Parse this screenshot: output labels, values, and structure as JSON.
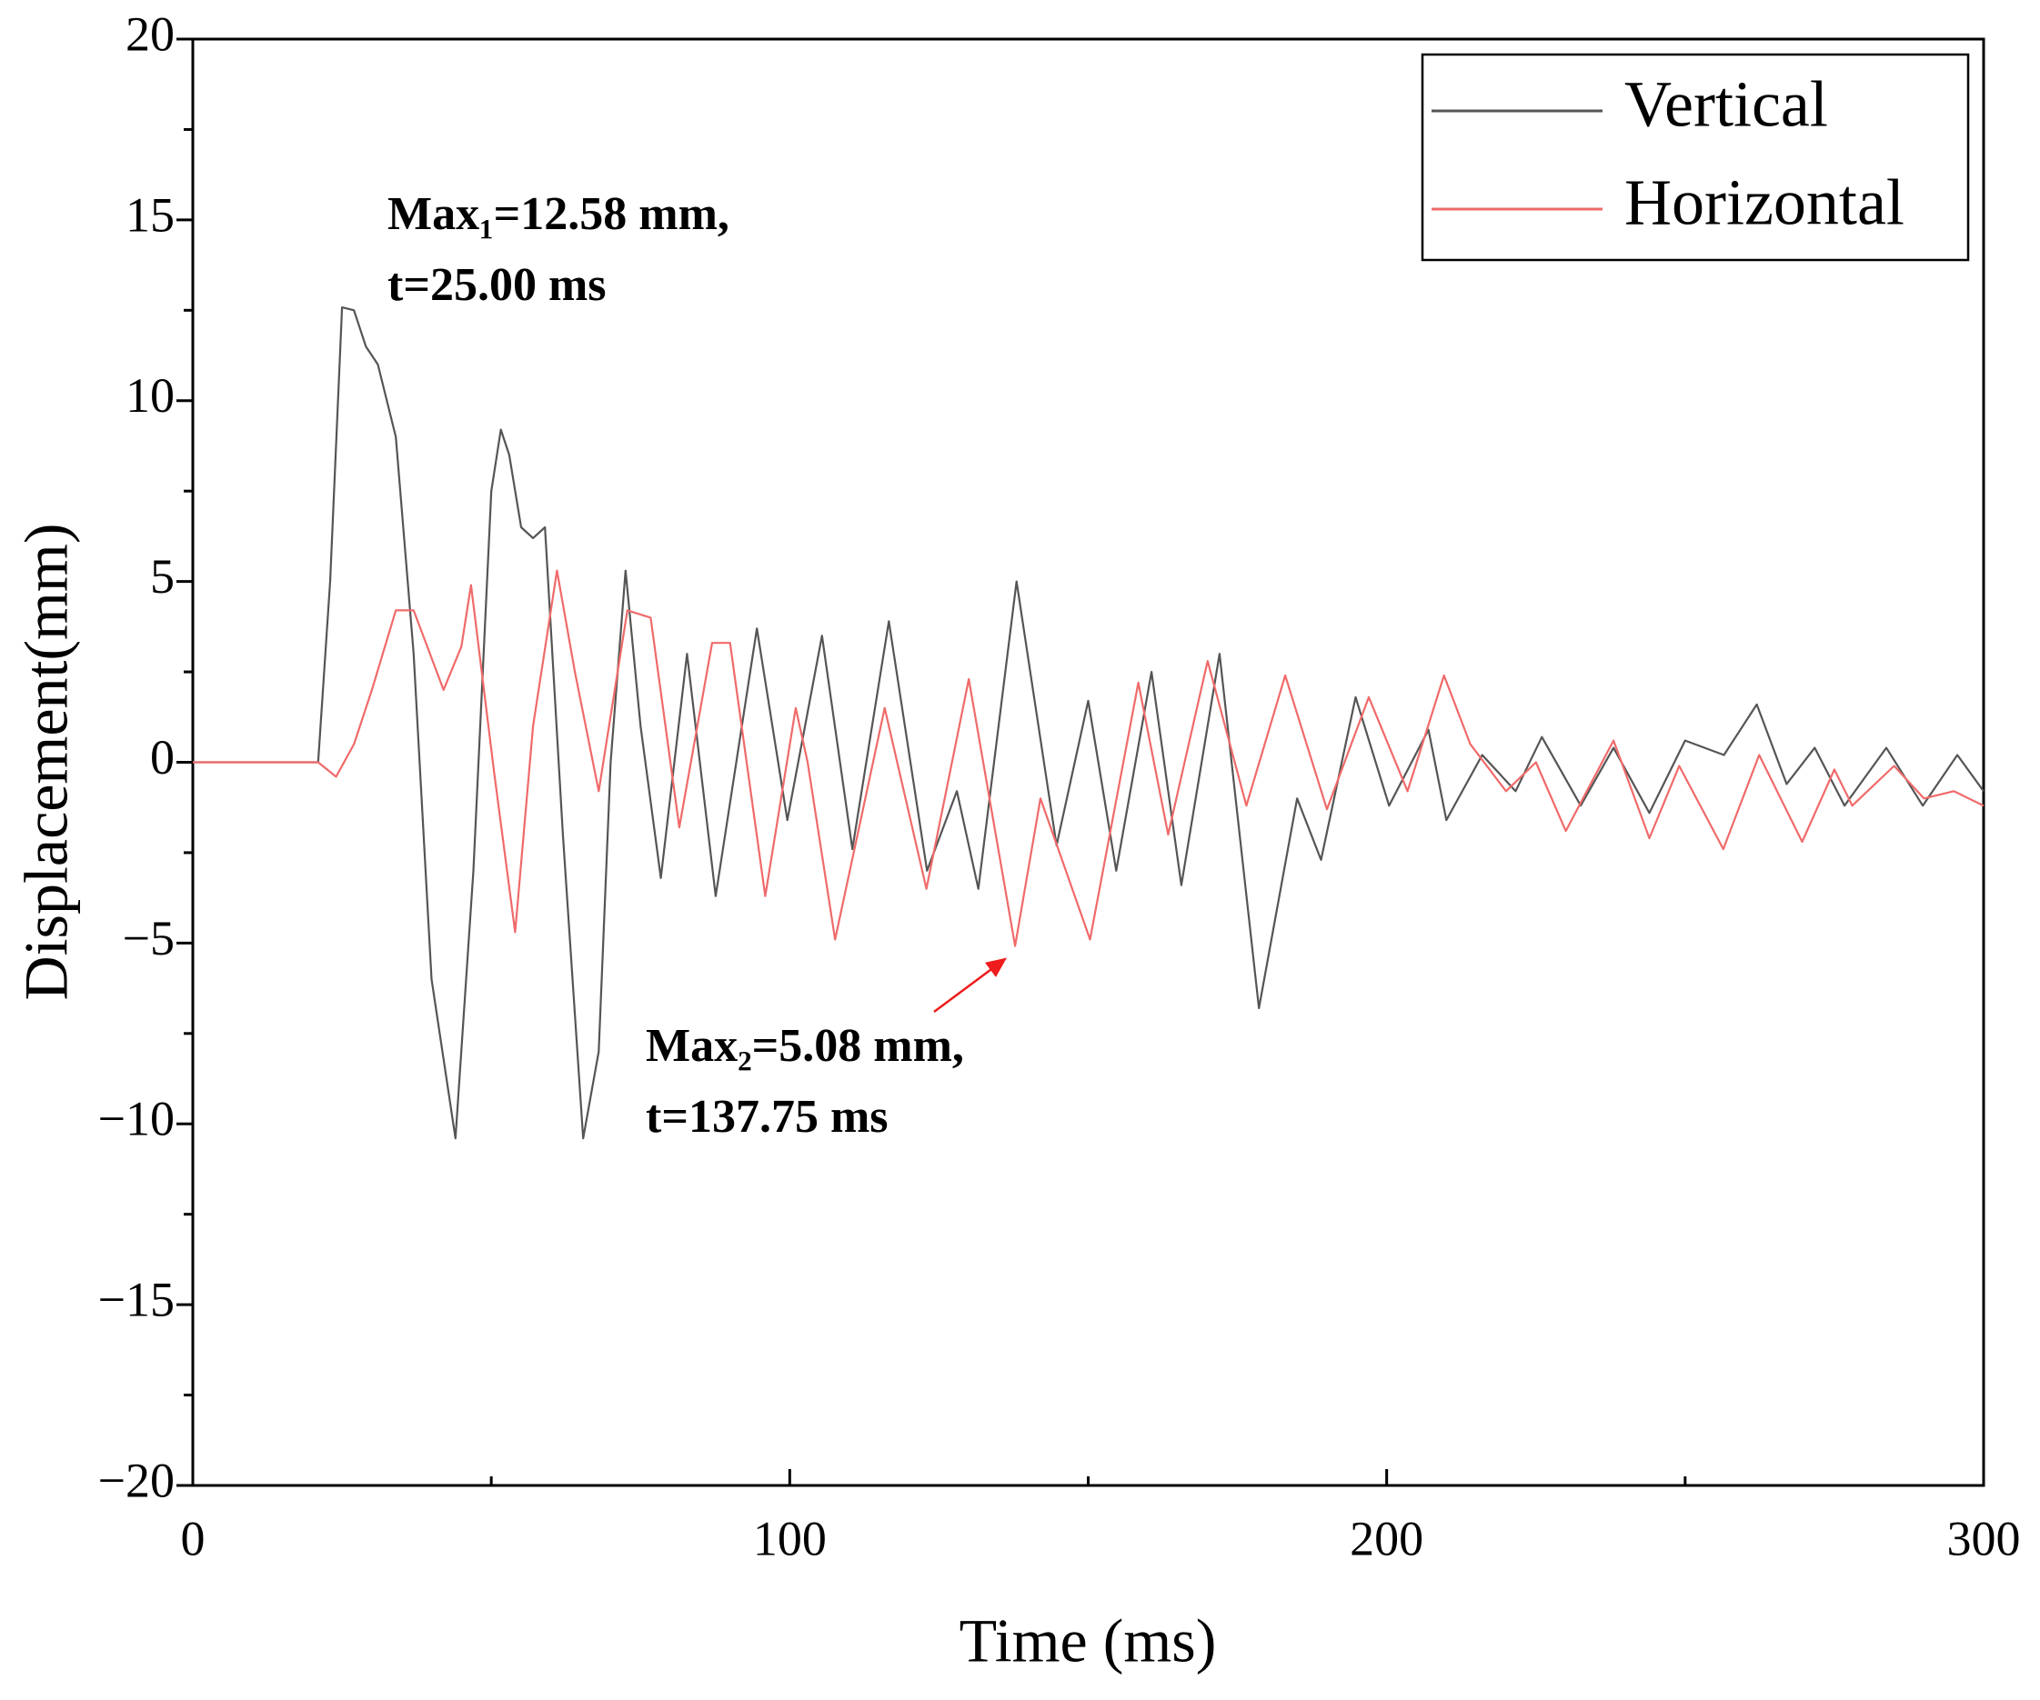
{
  "chart_data": {
    "type": "line",
    "x_label": "Time (ms)",
    "y_label": "Displacement(mm)",
    "xlim": [
      0,
      300
    ],
    "ylim": [
      -20,
      20
    ],
    "xticks": [
      0,
      100,
      200,
      300
    ],
    "yticks": [
      -20,
      -15,
      -10,
      -5,
      0,
      5,
      10,
      15,
      20
    ],
    "xminorticks": [
      50,
      150,
      250
    ],
    "yminorticks": [
      -17.5,
      -12.5,
      -7.5,
      -2.5,
      2.5,
      7.5,
      12.5,
      17.5
    ],
    "legend": "upper right",
    "series": [
      {
        "name": "Vertical",
        "color": "#555555",
        "x": [
          0,
          21,
          23,
          25,
          27,
          29,
          31,
          34,
          37,
          40,
          44,
          47,
          50,
          51.6,
          53,
          55,
          57,
          59,
          62,
          65.4,
          68,
          70,
          72.5,
          75,
          78.4,
          82.8,
          87.6,
          94.5,
          99.6,
          105.4,
          110.5,
          116.6,
          123,
          128,
          131.6,
          138,
          144.7,
          150,
          154.7,
          160.6,
          165.6,
          172,
          178.6,
          185,
          189,
          194.8,
          200.4,
          207,
          210,
          216,
          221.6,
          226,
          232.5,
          238,
          244,
          250,
          256.5,
          262,
          267,
          271.7,
          276.7,
          283.7,
          289.8,
          295.6,
          300
        ],
        "values": [
          0,
          0,
          5,
          12.58,
          12.5,
          11.5,
          11,
          9,
          3,
          -6,
          -10.4,
          -3,
          7.5,
          9.2,
          8.5,
          6.5,
          6.2,
          6.5,
          -2,
          -10.4,
          -8,
          0,
          5.3,
          1,
          -3.2,
          3.0,
          -3.7,
          3.7,
          -1.6,
          3.5,
          -2.4,
          3.9,
          -3.0,
          -0.8,
          -3.5,
          5.0,
          -2.3,
          1.7,
          -3.0,
          2.5,
          -3.4,
          3.0,
          -6.8,
          -1.0,
          -2.7,
          1.8,
          -1.2,
          0.9,
          -1.6,
          0.2,
          -0.8,
          0.7,
          -1.2,
          0.4,
          -1.4,
          0.6,
          0.2,
          1.6,
          -0.6,
          0.4,
          -1.2,
          0.4,
          -1.2,
          0.2,
          -0.8
        ]
      },
      {
        "name": "Horizontal",
        "color": "#f06a6a",
        "x": [
          0,
          21,
          24,
          27,
          30,
          34,
          37,
          42,
          45,
          46.6,
          50.5,
          54,
          57,
          61,
          64,
          68,
          72.8,
          76.7,
          81.5,
          87,
          90,
          95.9,
          101,
          103,
          107.6,
          115.9,
          122.9,
          130,
          137.75,
          142,
          150.3,
          158.4,
          163.4,
          170,
          176.5,
          183,
          190,
          197,
          203.5,
          209.6,
          214,
          220,
          225,
          230,
          238,
          244,
          249,
          256.4,
          262.4,
          269.6,
          275,
          278,
          285,
          290,
          295,
          300
        ],
        "values": [
          0,
          0,
          -0.4,
          0.5,
          2,
          4.2,
          4.2,
          2,
          3.2,
          4.9,
          -0.3,
          -4.7,
          1.0,
          5.3,
          2.5,
          -0.8,
          4.2,
          4.0,
          -1.8,
          3.3,
          3.3,
          -3.7,
          1.5,
          0,
          -4.9,
          1.5,
          -3.5,
          2.3,
          -5.08,
          -1.0,
          -4.9,
          2.2,
          -2.0,
          2.8,
          -1.2,
          2.4,
          -1.3,
          1.8,
          -0.8,
          2.4,
          0.5,
          -0.8,
          0,
          -1.9,
          0.6,
          -2.1,
          -0.1,
          -2.4,
          0.2,
          -2.2,
          -0.2,
          -1.2,
          -0.1,
          -1.0,
          -0.8,
          -1.2
        ]
      }
    ],
    "annotations": [
      {
        "lines": [
          "Max₁=12.58 mm,",
          "t=25.00 ms"
        ],
        "color": "#000000"
      },
      {
        "lines": [
          "Max₂=5.08 mm,",
          "t=137.75 ms"
        ],
        "color": "#ee1c1c"
      }
    ]
  }
}
